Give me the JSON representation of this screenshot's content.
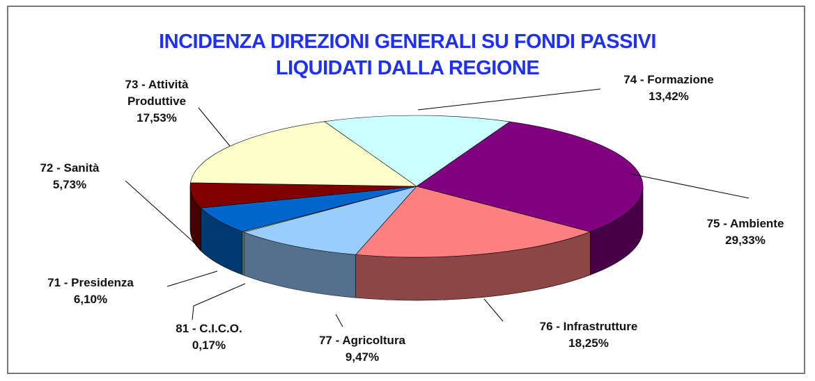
{
  "chart_data": {
    "type": "pie",
    "title": [
      "INCIDENZA DIREZIONI GENERALI SU FONDI PASSIVI",
      "LIQUIDATI DALLA REGIONE"
    ],
    "categories": [
      "74 - Formazione",
      "75 - Ambiente",
      "76 - Infrastrutture",
      "77 - Agricoltura",
      "81 - C.I.C.O.",
      "71 - Presidenza",
      "72 - Sanità",
      "73 - Attività Produttive"
    ],
    "values": [
      13.42,
      29.33,
      18.25,
      9.47,
      0.17,
      6.1,
      5.73,
      17.53
    ],
    "value_labels": [
      "13,42%",
      "29,33%",
      "18,25%",
      "9,47%",
      "0,17%",
      "6,10%",
      "5,73%",
      "17,53%"
    ],
    "colors": [
      "#ccffff",
      "#800080",
      "#ff8080",
      "#99ccff",
      "#ccffcc",
      "#0066cc",
      "#800000",
      "#ffffcc"
    ]
  }
}
